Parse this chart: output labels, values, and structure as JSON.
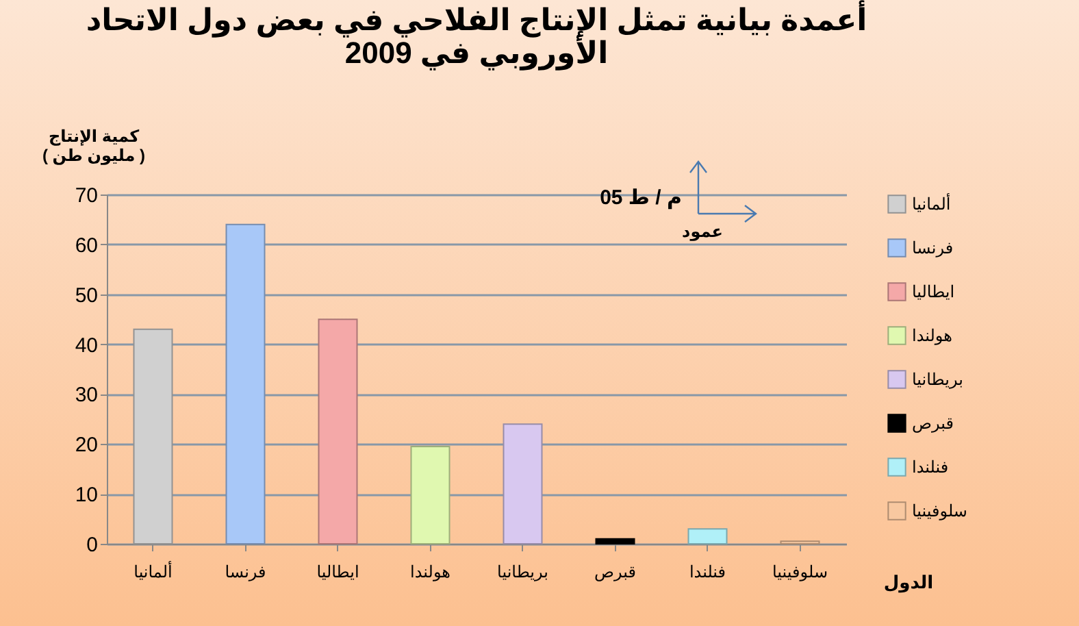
{
  "chart_data": {
    "type": "bar",
    "title": "أعمدة بيانية تمثل الإنتاج الفلاحي في بعض دول الاتحاد الأوروبي في 2009",
    "xlabel": "الدول",
    "ylabel": "كمية الإنتاج ( مليون طن )",
    "categories": [
      "ألمانيا",
      "فرنسا",
      "ايطاليا",
      "هولندا",
      "بريطانيا",
      "قبرص",
      "فنلندا",
      "سلوفينيا"
    ],
    "series": [
      {
        "name": "ألمانيا",
        "color": "#d0d0d0",
        "values": [
          43,
          null,
          null,
          null,
          null,
          null,
          null,
          null
        ]
      },
      {
        "name": "فرنسا",
        "color": "#a8c8f8",
        "values": [
          null,
          64,
          null,
          null,
          null,
          null,
          null,
          null
        ]
      },
      {
        "name": "ايطاليا",
        "color": "#f4a8a8",
        "values": [
          null,
          null,
          45,
          null,
          null,
          null,
          null,
          null
        ]
      },
      {
        "name": "هولندا",
        "color": "#e0f8b0",
        "values": [
          null,
          null,
          null,
          19.5,
          null,
          null,
          null,
          null
        ]
      },
      {
        "name": "بريطانيا",
        "color": "#d8c8f0",
        "values": [
          null,
          null,
          null,
          null,
          24,
          null,
          null,
          null
        ]
      },
      {
        "name": "قبرص",
        "color": "#000000",
        "values": [
          null,
          null,
          null,
          null,
          null,
          1,
          null,
          null
        ]
      },
      {
        "name": "فنلندا",
        "color": "#b0f0f8",
        "values": [
          null,
          null,
          null,
          null,
          null,
          null,
          3,
          null
        ]
      },
      {
        "name": "سلوفينيا",
        "color": "#f8c8a0",
        "values": [
          null,
          null,
          null,
          null,
          null,
          null,
          null,
          0.5
        ]
      }
    ],
    "ylim": [
      0,
      70
    ],
    "yticks": [
      0,
      10,
      20,
      30,
      40,
      50,
      60,
      70
    ],
    "grid": "y",
    "legend": "right",
    "annotations": [
      "05 م / ط",
      "عمود"
    ]
  }
}
